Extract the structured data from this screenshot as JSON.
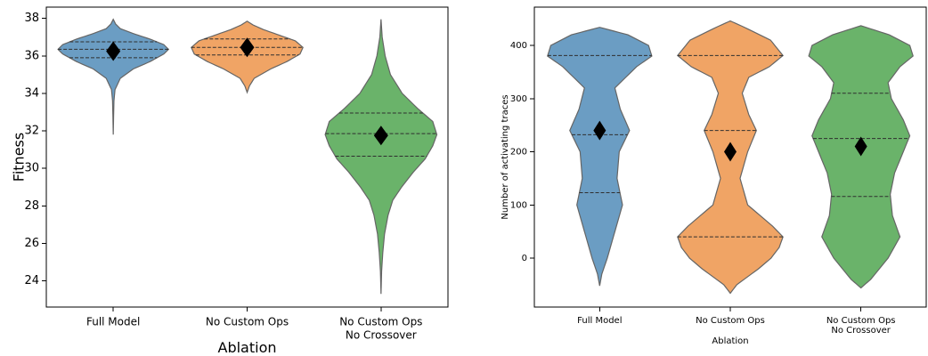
{
  "chart_data": [
    {
      "type": "violin",
      "title": "",
      "xlabel": "Ablation",
      "ylabel": "Fitness",
      "ylim": [
        22.6,
        38.6
      ],
      "yticks": [
        24,
        26,
        28,
        30,
        32,
        34,
        36,
        38
      ],
      "categories": [
        [
          "Full Model"
        ],
        [
          "No Custom Ops"
        ],
        [
          "No Custom Ops",
          "No Crossover"
        ]
      ],
      "colors": [
        "#5b93bd",
        "#ef9b55",
        "#5aab5a"
      ],
      "violins": [
        {
          "profile": [
            [
              31.8,
              0.0
            ],
            [
              32.8,
              0.006
            ],
            [
              33.6,
              0.012
            ],
            [
              34.2,
              0.03
            ],
            [
              34.8,
              0.12
            ],
            [
              35.3,
              0.34
            ],
            [
              35.7,
              0.63
            ],
            [
              36.1,
              0.86
            ],
            [
              36.35,
              0.94
            ],
            [
              36.6,
              0.86
            ],
            [
              36.9,
              0.62
            ],
            [
              37.2,
              0.33
            ],
            [
              37.45,
              0.12
            ],
            [
              37.7,
              0.04
            ],
            [
              37.95,
              0.0
            ]
          ],
          "quartiles": [
            35.9,
            36.35,
            36.75
          ],
          "mean": 36.25
        },
        {
          "profile": [
            [
              34.05,
              0.0
            ],
            [
              34.4,
              0.04
            ],
            [
              34.8,
              0.12
            ],
            [
              35.3,
              0.4
            ],
            [
              35.7,
              0.68
            ],
            [
              36.1,
              0.9
            ],
            [
              36.45,
              0.95
            ],
            [
              36.8,
              0.82
            ],
            [
              37.1,
              0.55
            ],
            [
              37.4,
              0.28
            ],
            [
              37.65,
              0.1
            ],
            [
              37.85,
              0.0
            ]
          ],
          "quartiles": [
            36.05,
            36.45,
            36.9
          ],
          "mean": 36.45
        },
        {
          "profile": [
            [
              23.3,
              0.0
            ],
            [
              24.5,
              0.01
            ],
            [
              25.5,
              0.03
            ],
            [
              26.5,
              0.06
            ],
            [
              27.5,
              0.12
            ],
            [
              28.3,
              0.2
            ],
            [
              29.0,
              0.35
            ],
            [
              29.8,
              0.55
            ],
            [
              30.5,
              0.75
            ],
            [
              31.2,
              0.88
            ],
            [
              31.8,
              0.95
            ],
            [
              32.5,
              0.88
            ],
            [
              33.2,
              0.62
            ],
            [
              34.0,
              0.36
            ],
            [
              35.0,
              0.16
            ],
            [
              36.0,
              0.07
            ],
            [
              37.0,
              0.02
            ],
            [
              37.95,
              0.0
            ]
          ],
          "quartiles": [
            30.65,
            31.85,
            32.95
          ],
          "mean": 31.75
        }
      ]
    },
    {
      "type": "violin",
      "title": "",
      "xlabel": "Ablation",
      "ylabel": "Number of activating traces",
      "ylim": [
        -92,
        472
      ],
      "yticks": [
        0,
        100,
        200,
        300,
        400
      ],
      "categories": [
        [
          "Full Model"
        ],
        [
          "No Custom Ops"
        ],
        [
          "No Custom Ops",
          "No Crossover"
        ]
      ],
      "colors": [
        "#5b93bd",
        "#ef9b55",
        "#5aab5a"
      ],
      "violins": [
        {
          "profile": [
            [
              -52,
              0.0
            ],
            [
              -30,
              0.04
            ],
            [
              0,
              0.14
            ],
            [
              50,
              0.28
            ],
            [
              100,
              0.42
            ],
            [
              150,
              0.32
            ],
            [
              200,
              0.36
            ],
            [
              240,
              0.55
            ],
            [
              280,
              0.38
            ],
            [
              320,
              0.28
            ],
            [
              360,
              0.68
            ],
            [
              380,
              0.96
            ],
            [
              400,
              0.9
            ],
            [
              420,
              0.52
            ],
            [
              434,
              0.0
            ]
          ],
          "quartiles": [
            123,
            232,
            381
          ],
          "mean": 240
        },
        {
          "profile": [
            [
              -66,
              0.0
            ],
            [
              -50,
              0.12
            ],
            [
              -20,
              0.52
            ],
            [
              0,
              0.75
            ],
            [
              20,
              0.9
            ],
            [
              40,
              0.97
            ],
            [
              60,
              0.78
            ],
            [
              100,
              0.32
            ],
            [
              150,
              0.18
            ],
            [
              200,
              0.32
            ],
            [
              240,
              0.48
            ],
            [
              270,
              0.34
            ],
            [
              310,
              0.22
            ],
            [
              340,
              0.34
            ],
            [
              360,
              0.72
            ],
            [
              381,
              0.97
            ],
            [
              410,
              0.74
            ],
            [
              435,
              0.24
            ],
            [
              446,
              0.0
            ]
          ],
          "quartiles": [
            40,
            240,
            381
          ],
          "mean": 200
        },
        {
          "profile": [
            [
              -56,
              0.0
            ],
            [
              -40,
              0.18
            ],
            [
              0,
              0.5
            ],
            [
              40,
              0.72
            ],
            [
              80,
              0.58
            ],
            [
              120,
              0.54
            ],
            [
              160,
              0.62
            ],
            [
              200,
              0.78
            ],
            [
              230,
              0.9
            ],
            [
              260,
              0.78
            ],
            [
              300,
              0.56
            ],
            [
              330,
              0.5
            ],
            [
              360,
              0.72
            ],
            [
              380,
              0.96
            ],
            [
              400,
              0.9
            ],
            [
              420,
              0.52
            ],
            [
              437,
              0.0
            ]
          ],
          "quartiles": [
            116,
            225,
            310
          ],
          "mean": 210
        }
      ]
    }
  ]
}
